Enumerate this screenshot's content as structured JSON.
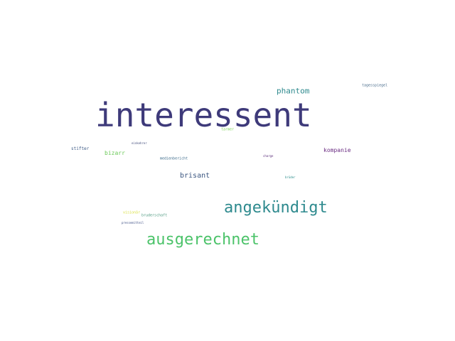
{
  "wordcloud": {
    "words": [
      {
        "text": "interessent",
        "color": "#3e3a7a"
      },
      {
        "text": "angekündigt",
        "color": "#2e8a8e"
      },
      {
        "text": "ausgerechnet",
        "color": "#4cc36a"
      },
      {
        "text": "phantom",
        "color": "#2e8a8e"
      },
      {
        "text": "brisant",
        "color": "#3b5680"
      },
      {
        "text": "kompanie",
        "color": "#6a2c82"
      },
      {
        "text": "bizarr",
        "color": "#6dca5a"
      },
      {
        "text": "stifter",
        "color": "#3d5b86"
      },
      {
        "text": "tagesspiegel",
        "color": "#4a6d8c"
      },
      {
        "text": "tarmer",
        "color": "#7fd35a"
      },
      {
        "text": "medienbericht",
        "color": "#3b6a8a"
      },
      {
        "text": "charge",
        "color": "#5a2c7a"
      },
      {
        "text": "brüder",
        "color": "#2a8c8a"
      },
      {
        "text": "visionär",
        "color": "#d8de3a"
      },
      {
        "text": "bruderschaft",
        "color": "#4e9a80"
      },
      {
        "text": "pressemitteil",
        "color": "#3d4f85"
      },
      {
        "text": "einkehrer",
        "color": "#45507e"
      }
    ]
  }
}
